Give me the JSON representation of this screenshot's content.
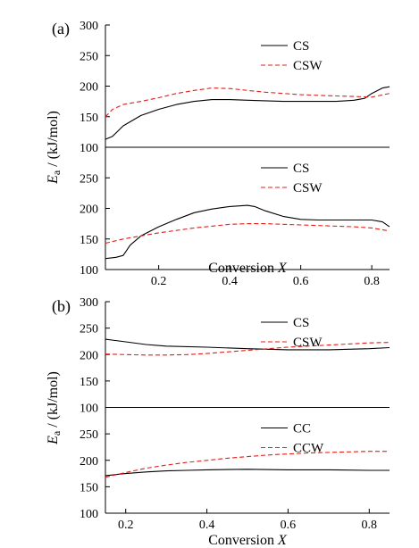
{
  "colors": {
    "axis": "#000000",
    "series_solid": "#000000",
    "series_dashed": "#e0201b"
  },
  "chart_data": [
    {
      "panel_label": "(a)",
      "type": "line",
      "ylabel": "E_a / (kJ/mol)",
      "xlabel": "Conversion X",
      "xlim": [
        0.05,
        0.85
      ],
      "xticks": [
        0.2,
        0.4,
        0.6,
        0.8
      ],
      "tick_labels": [
        "0.2",
        "0.4",
        "0.6",
        "0.8"
      ],
      "subplots": [
        {
          "ylim": [
            100,
            300
          ],
          "yticks": [
            100,
            150,
            200,
            250,
            300
          ],
          "tick_labels": [
            "100",
            "150",
            "200",
            "250",
            "300"
          ],
          "legend": "top-right",
          "series": [
            {
              "name": "CS",
              "style": "solid",
              "x": [
                0.05,
                0.07,
                0.1,
                0.15,
                0.2,
                0.25,
                0.3,
                0.35,
                0.4,
                0.45,
                0.5,
                0.55,
                0.6,
                0.65,
                0.7,
                0.75,
                0.78,
                0.8,
                0.83,
                0.85
              ],
              "y": [
                113,
                118,
                135,
                152,
                162,
                170,
                175,
                178,
                178,
                177,
                176,
                175,
                175,
                175,
                175,
                177,
                180,
                188,
                197,
                199
              ]
            },
            {
              "name": "CSW",
              "style": "dashed",
              "x": [
                0.05,
                0.07,
                0.1,
                0.15,
                0.2,
                0.25,
                0.3,
                0.35,
                0.4,
                0.45,
                0.5,
                0.55,
                0.6,
                0.65,
                0.7,
                0.75,
                0.8,
                0.85
              ],
              "y": [
                150,
                162,
                170,
                175,
                181,
                188,
                193,
                197,
                196,
                193,
                190,
                188,
                186,
                185,
                184,
                183,
                182,
                188
              ]
            }
          ]
        },
        {
          "ylim": [
            100,
            300
          ],
          "yticks": [
            100,
            150,
            200,
            250
          ],
          "tick_labels": [
            "100",
            "150",
            "200",
            "250"
          ],
          "legend": "top-right",
          "series": [
            {
              "name": "CS",
              "style": "solid",
              "x": [
                0.05,
                0.08,
                0.1,
                0.12,
                0.15,
                0.2,
                0.25,
                0.3,
                0.35,
                0.4,
                0.45,
                0.47,
                0.5,
                0.55,
                0.6,
                0.65,
                0.7,
                0.75,
                0.8,
                0.83,
                0.85
              ],
              "y": [
                118,
                120,
                123,
                140,
                155,
                170,
                182,
                193,
                199,
                203,
                205,
                203,
                196,
                187,
                182,
                181,
                181,
                181,
                181,
                178,
                170
              ]
            },
            {
              "name": "CSW",
              "style": "dashed",
              "x": [
                0.05,
                0.1,
                0.15,
                0.2,
                0.25,
                0.3,
                0.35,
                0.4,
                0.45,
                0.5,
                0.55,
                0.6,
                0.65,
                0.7,
                0.75,
                0.8,
                0.85
              ],
              "y": [
                143,
                150,
                155,
                160,
                164,
                168,
                171,
                174,
                175,
                175,
                174,
                173,
                172,
                171,
                170,
                168,
                163
              ]
            }
          ]
        }
      ]
    },
    {
      "panel_label": "(b)",
      "type": "line",
      "ylabel": "E_a / (kJ/mol)",
      "xlabel": "Conversion X",
      "xlim": [
        0.15,
        0.85
      ],
      "xticks": [
        0.2,
        0.4,
        0.6,
        0.8
      ],
      "tick_labels": [
        "0.2",
        "0.4",
        "0.6",
        "0.8"
      ],
      "subplots": [
        {
          "ylim": [
            100,
            300
          ],
          "yticks": [
            100,
            150,
            200,
            250,
            300
          ],
          "tick_labels": [
            "100",
            "150",
            "200",
            "250",
            "300"
          ],
          "legend": "top-right",
          "series": [
            {
              "name": "CS",
              "style": "solid",
              "x": [
                0.15,
                0.2,
                0.25,
                0.3,
                0.4,
                0.5,
                0.6,
                0.7,
                0.8,
                0.85
              ],
              "y": [
                229,
                224,
                219,
                216,
                214,
                211,
                209,
                209,
                211,
                213
              ]
            },
            {
              "name": "CSW",
              "style": "dashed",
              "x": [
                0.15,
                0.2,
                0.25,
                0.3,
                0.35,
                0.4,
                0.45,
                0.5,
                0.55,
                0.6,
                0.65,
                0.7,
                0.75,
                0.8,
                0.85
              ],
              "y": [
                201,
                200,
                199,
                199,
                200,
                202,
                205,
                208,
                211,
                214,
                216,
                218,
                220,
                222,
                223
              ]
            }
          ]
        },
        {
          "ylim": [
            100,
            300
          ],
          "yticks": [
            100,
            150,
            200,
            250
          ],
          "tick_labels": [
            "100",
            "150",
            "200",
            "250"
          ],
          "legend": "top-right",
          "series": [
            {
              "name": "CC",
              "style": "solid",
              "x": [
                0.15,
                0.2,
                0.25,
                0.3,
                0.35,
                0.4,
                0.5,
                0.6,
                0.7,
                0.8,
                0.85
              ],
              "y": [
                171,
                175,
                178,
                180,
                181,
                182,
                183,
                182,
                182,
                181,
                181
              ]
            },
            {
              "name": "CCW",
              "style": "dashed",
              "x": [
                0.15,
                0.2,
                0.25,
                0.3,
                0.35,
                0.4,
                0.45,
                0.5,
                0.55,
                0.6,
                0.65,
                0.7,
                0.75,
                0.8,
                0.85
              ],
              "y": [
                168,
                177,
                185,
                191,
                196,
                200,
                204,
                207,
                210,
                212,
                214,
                215,
                216,
                217,
                217
              ]
            }
          ]
        }
      ]
    }
  ]
}
